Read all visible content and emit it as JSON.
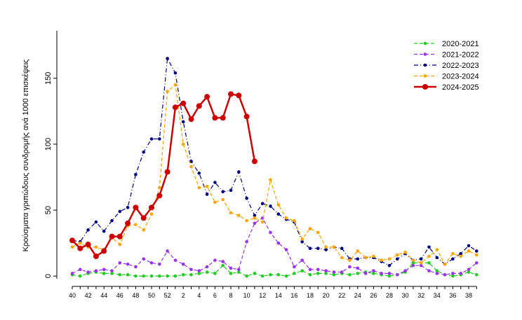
{
  "chart_data": {
    "type": "line",
    "ylabel": "Κρούσματα γριπώδους συνδρομής ανά 1000 επισκέψεις",
    "categories": [
      "40",
      null,
      "42",
      null,
      "44",
      null,
      "46",
      null,
      "48",
      null,
      "50",
      null,
      "52",
      null,
      "2",
      null,
      "4",
      null,
      "6",
      null,
      "8",
      null,
      "10",
      null,
      "12",
      null,
      "14",
      null,
      "16",
      null,
      "18",
      null,
      "20",
      null,
      "22",
      null,
      "24",
      null,
      "26",
      null,
      "28",
      null,
      "30",
      null,
      "32",
      null,
      "34",
      null,
      "36",
      null,
      "38",
      null
    ],
    "ylim": [
      -2,
      186
    ],
    "yticks": [
      0,
      50,
      100,
      150
    ],
    "legend": "top-right",
    "series": [
      {
        "name": "2020-2021",
        "color": "#22cc22",
        "line_style": "dashed",
        "values": [
          1,
          0,
          2,
          3,
          2,
          2,
          1,
          1,
          0,
          0,
          0,
          0,
          0,
          0,
          1,
          1,
          2,
          3,
          2,
          8,
          2,
          3,
          0,
          2,
          0,
          1,
          1,
          0,
          2,
          4,
          1,
          2,
          2,
          1,
          2,
          1,
          2,
          3,
          2,
          1,
          0,
          1,
          3,
          10,
          10,
          10,
          4,
          1,
          0,
          1,
          3,
          1
        ]
      },
      {
        "name": "2021-2022",
        "color": "#9933ee",
        "line_style": "dashed",
        "values": [
          2,
          5,
          3,
          4,
          5,
          4,
          10,
          9,
          7,
          13,
          10,
          9,
          19,
          12,
          9,
          5,
          4,
          7,
          12,
          11,
          6,
          5,
          26,
          40,
          44,
          33,
          25,
          20,
          7,
          12,
          5,
          5,
          4,
          3,
          3,
          7,
          6,
          2,
          4,
          2,
          2,
          1,
          4,
          8,
          8,
          4,
          2,
          1,
          2,
          2,
          5,
          10
        ]
      },
      {
        "name": "2022-2023",
        "color": "#000080",
        "line_style": "dashdot",
        "values": [
          27,
          26,
          35,
          41,
          34,
          42,
          49,
          52,
          77,
          94,
          104,
          104,
          165,
          154,
          117,
          87,
          78,
          62,
          71,
          64,
          65,
          79,
          59,
          46,
          55,
          53,
          47,
          43,
          41,
          26,
          21,
          21,
          20,
          22,
          21,
          13,
          13,
          14,
          14,
          11,
          8,
          13,
          17,
          12,
          13,
          22,
          14,
          9,
          13,
          17,
          23,
          19
        ]
      },
      {
        "name": "2023-2024",
        "color": "#ffa500",
        "line_style": "dashed",
        "values": [
          22,
          25,
          22,
          22,
          20,
          29,
          24,
          38,
          39,
          35,
          47,
          67,
          140,
          145,
          100,
          83,
          67,
          68,
          56,
          58,
          48,
          46,
          42,
          44,
          41,
          73,
          54,
          44,
          42,
          28,
          36,
          33,
          22,
          22,
          14,
          12,
          19,
          14,
          15,
          12,
          13,
          16,
          18,
          12,
          10,
          15,
          20,
          9,
          17,
          15,
          19,
          16
        ]
      },
      {
        "name": "2024-2025",
        "color": "#cc0000",
        "line_style": "solid",
        "values": [
          27,
          21,
          24,
          15,
          19,
          30,
          30,
          40,
          52,
          44,
          52,
          61,
          79,
          128,
          131,
          119,
          129,
          136,
          120,
          120,
          138,
          137,
          121,
          87,
          null,
          null,
          null,
          null,
          null,
          null,
          null,
          null,
          null,
          null,
          null,
          null,
          null,
          null,
          null,
          null,
          null,
          null,
          null,
          null,
          null,
          null,
          null,
          null,
          null,
          null,
          null,
          null
        ]
      }
    ]
  }
}
